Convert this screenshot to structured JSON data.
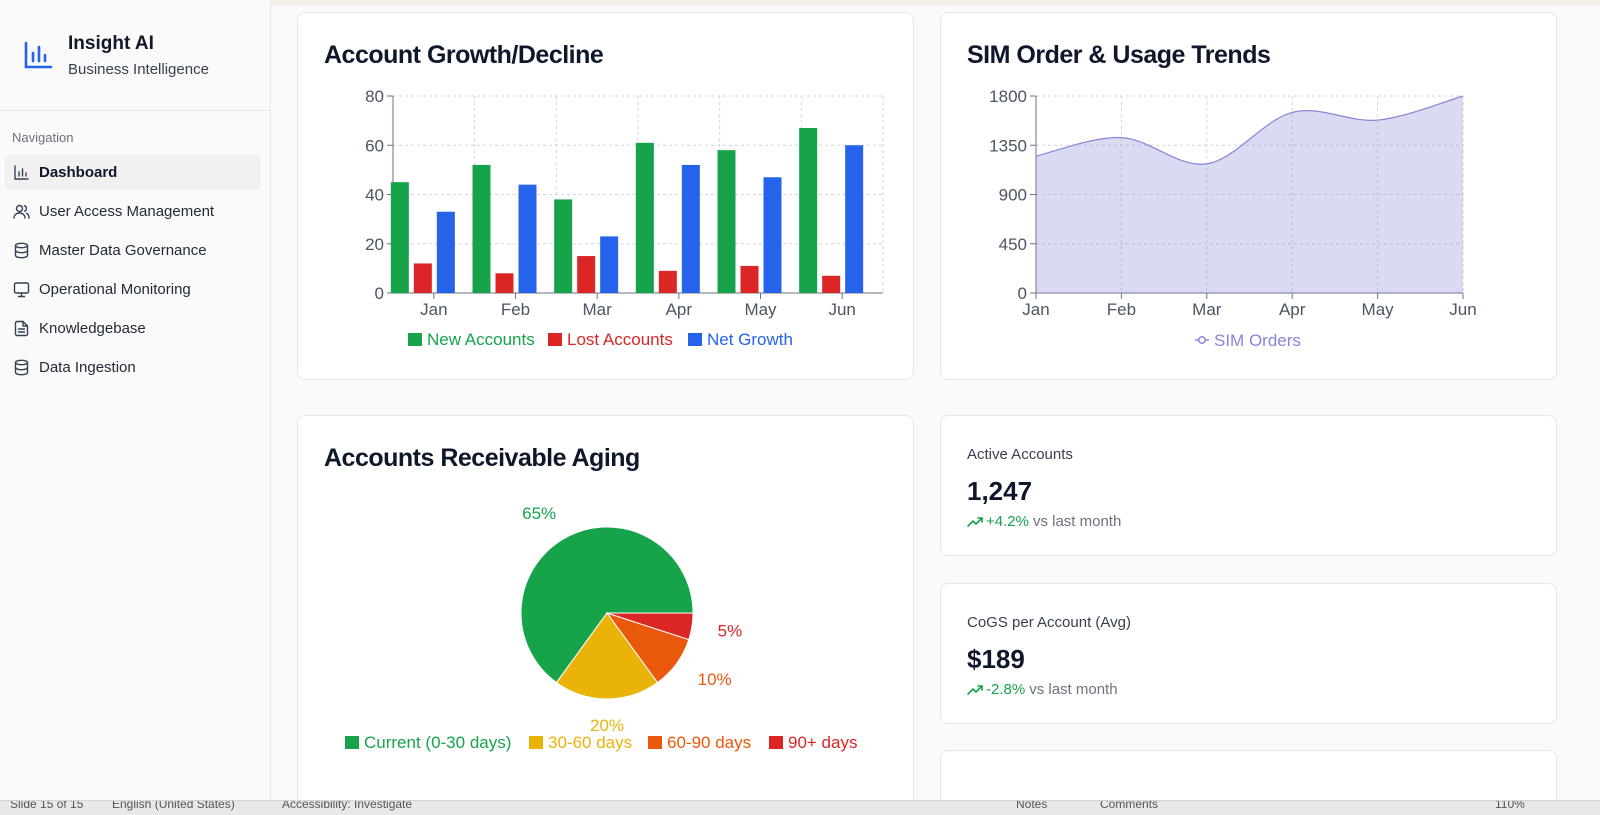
{
  "brand": {
    "title": "Insight AI",
    "subtitle": "Business Intelligence"
  },
  "nav": {
    "label": "Navigation",
    "items": [
      {
        "label": "Dashboard",
        "icon": "bar-chart-icon",
        "active": true
      },
      {
        "label": "User Access Management",
        "icon": "users-icon"
      },
      {
        "label": "Master Data Governance",
        "icon": "database-icon"
      },
      {
        "label": "Operational Monitoring",
        "icon": "monitor-icon"
      },
      {
        "label": "Knowledgebase",
        "icon": "file-text-icon"
      },
      {
        "label": "Data Ingestion",
        "icon": "database-icon"
      }
    ]
  },
  "cards": {
    "growth": {
      "title": "Account Growth/Decline"
    },
    "sim": {
      "title": "SIM Order & Usage Trends"
    },
    "aging": {
      "title": "Accounts Receivable Aging"
    },
    "active": {
      "label": "Active Accounts",
      "value": "1,247",
      "delta": "+4.2%",
      "suffix": "vs last month"
    },
    "cogs": {
      "label": "CoGS per Account (Avg)",
      "value": "$189",
      "delta": "-2.8%",
      "suffix": "vs last month"
    }
  },
  "statusbar": {
    "slide": "Slide 15 of 15",
    "language": "English (United States)",
    "accessibility": "Accessibility: Investigate",
    "notes": "Notes",
    "comments": "Comments",
    "zoom": "110%"
  },
  "colors": {
    "green": "#16a34a",
    "red": "#dc2626",
    "blue": "#2563eb",
    "purple": "#8884d8",
    "yellow": "#eab308",
    "orange": "#ea580c"
  },
  "chart_data": [
    {
      "type": "bar",
      "title": "Account Growth/Decline",
      "categories": [
        "Jan",
        "Feb",
        "Mar",
        "Apr",
        "May",
        "Jun"
      ],
      "series": [
        {
          "name": "New Accounts",
          "values": [
            45,
            52,
            38,
            61,
            58,
            67
          ],
          "color": "#16a34a"
        },
        {
          "name": "Lost Accounts",
          "values": [
            12,
            8,
            15,
            9,
            11,
            7
          ],
          "color": "#dc2626"
        },
        {
          "name": "Net Growth",
          "values": [
            33,
            44,
            23,
            52,
            47,
            60
          ],
          "color": "#2563eb"
        }
      ],
      "ylim": [
        0,
        80
      ],
      "yticks": [
        "0",
        "20",
        "40",
        "60",
        "80"
      ],
      "grid": true,
      "legend": "bottom"
    },
    {
      "type": "area",
      "title": "SIM Order & Usage Trends",
      "categories": [
        "Jan",
        "Feb",
        "Mar",
        "Apr",
        "May",
        "Jun"
      ],
      "series": [
        {
          "name": "SIM Orders",
          "values": [
            1250,
            1420,
            1180,
            1650,
            1580,
            1800
          ],
          "color": "#8884d8"
        }
      ],
      "ylim": [
        0,
        1800
      ],
      "yticks": [
        "0",
        "450",
        "900",
        "1350",
        "1800"
      ],
      "grid": true,
      "legend": "bottom"
    },
    {
      "type": "pie",
      "title": "Accounts Receivable Aging",
      "slices": [
        {
          "name": "Current (0-30 days)",
          "value": 65,
          "label": "65%",
          "color": "#16a34a"
        },
        {
          "name": "30-60 days",
          "value": 20,
          "label": "20%",
          "color": "#eab308"
        },
        {
          "name": "60-90 days",
          "value": 10,
          "label": "10%",
          "color": "#ea580c"
        },
        {
          "name": "90+ days",
          "value": 5,
          "label": "5%",
          "color": "#dc2626"
        }
      ],
      "legend": "bottom"
    }
  ]
}
